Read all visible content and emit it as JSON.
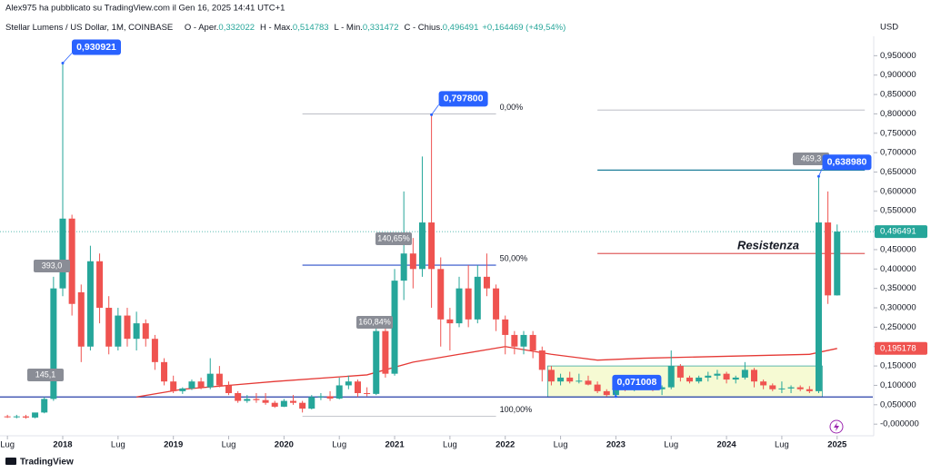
{
  "header": "Alex975 ha pubblicato su TradingView.com il Gen 16, 2025 14:41 UTC+1",
  "brand": "TradingView",
  "chart_data": {
    "type": "candlestick",
    "symbol": "Stellar Lumens / US Dollar, 1M, COINBASE",
    "ohlc": [
      {
        "label": "O - Aper.",
        "value": "0,332022"
      },
      {
        "label": "H - Max.",
        "value": "0,514783"
      },
      {
        "label": "L - Min.",
        "value": "0,331472"
      },
      {
        "label": "C - Chius.",
        "value": "0,496491"
      }
    ],
    "change": "+0,164469 (+49,54%)",
    "currency": "USD",
    "colors": {
      "up": "#26a69a",
      "down": "#ef5350"
    },
    "dates": [
      "2017-07",
      "2017-08",
      "2017-09",
      "2017-10",
      "2017-11",
      "2017-12",
      "2018-01",
      "2018-02",
      "2018-03",
      "2018-04",
      "2018-05",
      "2018-06",
      "2018-07",
      "2018-08",
      "2018-09",
      "2018-10",
      "2018-11",
      "2018-12",
      "2019-01",
      "2019-02",
      "2019-03",
      "2019-04",
      "2019-05",
      "2019-06",
      "2019-07",
      "2019-08",
      "2019-09",
      "2019-10",
      "2019-11",
      "2019-12",
      "2020-01",
      "2020-02",
      "2020-03",
      "2020-04",
      "2020-05",
      "2020-06",
      "2020-07",
      "2020-08",
      "2020-09",
      "2020-10",
      "2020-11",
      "2020-12",
      "2021-01",
      "2021-02",
      "2021-03",
      "2021-04",
      "2021-05",
      "2021-06",
      "2021-07",
      "2021-08",
      "2021-09",
      "2021-10",
      "2021-11",
      "2021-12",
      "2022-01",
      "2022-02",
      "2022-03",
      "2022-04",
      "2022-05",
      "2022-06",
      "2022-07",
      "2022-08",
      "2022-09",
      "2022-10",
      "2022-11",
      "2022-12",
      "2023-01",
      "2023-02",
      "2023-03",
      "2023-04",
      "2023-05",
      "2023-06",
      "2023-07",
      "2023-08",
      "2023-09",
      "2023-10",
      "2023-11",
      "2023-12",
      "2024-01",
      "2024-02",
      "2024-03",
      "2024-04",
      "2024-05",
      "2024-06",
      "2024-07",
      "2024-08",
      "2024-09",
      "2024-10",
      "2024-11",
      "2024-12",
      "2025-01"
    ],
    "candles": [
      [
        0.02,
        0.024,
        0.016,
        0.018
      ],
      [
        0.018,
        0.024,
        0.015,
        0.02
      ],
      [
        0.02,
        0.024,
        0.014,
        0.017
      ],
      [
        0.017,
        0.025,
        0.015,
        0.03
      ],
      [
        0.03,
        0.07,
        0.028,
        0.065
      ],
      [
        0.065,
        0.38,
        0.06,
        0.35
      ],
      [
        0.35,
        0.930921,
        0.33,
        0.53
      ],
      [
        0.53,
        0.54,
        0.28,
        0.31
      ],
      [
        0.34,
        0.36,
        0.16,
        0.2
      ],
      [
        0.2,
        0.46,
        0.19,
        0.42
      ],
      [
        0.42,
        0.44,
        0.26,
        0.3
      ],
      [
        0.3,
        0.33,
        0.18,
        0.2
      ],
      [
        0.2,
        0.3,
        0.19,
        0.28
      ],
      [
        0.28,
        0.3,
        0.2,
        0.22
      ],
      [
        0.22,
        0.29,
        0.19,
        0.26
      ],
      [
        0.26,
        0.27,
        0.2,
        0.22
      ],
      [
        0.22,
        0.23,
        0.14,
        0.16
      ],
      [
        0.16,
        0.17,
        0.1,
        0.11
      ],
      [
        0.11,
        0.125,
        0.08,
        0.085
      ],
      [
        0.085,
        0.095,
        0.078,
        0.092
      ],
      [
        0.092,
        0.115,
        0.088,
        0.11
      ],
      [
        0.11,
        0.12,
        0.09,
        0.095
      ],
      [
        0.095,
        0.17,
        0.09,
        0.13
      ],
      [
        0.13,
        0.15,
        0.095,
        0.1
      ],
      [
        0.1,
        0.11,
        0.075,
        0.08
      ],
      [
        0.08,
        0.085,
        0.055,
        0.06
      ],
      [
        0.06,
        0.075,
        0.055,
        0.065
      ],
      [
        0.065,
        0.08,
        0.055,
        0.062
      ],
      [
        0.062,
        0.08,
        0.05,
        0.055
      ],
      [
        0.055,
        0.06,
        0.042,
        0.045
      ],
      [
        0.045,
        0.065,
        0.044,
        0.06
      ],
      [
        0.06,
        0.075,
        0.05,
        0.055
      ],
      [
        0.055,
        0.06,
        0.03,
        0.04
      ],
      [
        0.04,
        0.075,
        0.038,
        0.07
      ],
      [
        0.07,
        0.08,
        0.062,
        0.072
      ],
      [
        0.072,
        0.085,
        0.06,
        0.066
      ],
      [
        0.066,
        0.12,
        0.064,
        0.1
      ],
      [
        0.1,
        0.125,
        0.09,
        0.11
      ],
      [
        0.11,
        0.115,
        0.07,
        0.08
      ],
      [
        0.08,
        0.095,
        0.072,
        0.078
      ],
      [
        0.078,
        0.26,
        0.075,
        0.24
      ],
      [
        0.24,
        0.25,
        0.12,
        0.13
      ],
      [
        0.13,
        0.4,
        0.125,
        0.37
      ],
      [
        0.37,
        0.6,
        0.32,
        0.44
      ],
      [
        0.44,
        0.48,
        0.35,
        0.4
      ],
      [
        0.4,
        0.69,
        0.38,
        0.52
      ],
      [
        0.52,
        0.7978,
        0.3,
        0.4
      ],
      [
        0.4,
        0.43,
        0.2,
        0.27
      ],
      [
        0.27,
        0.3,
        0.19,
        0.26
      ],
      [
        0.26,
        0.38,
        0.25,
        0.35
      ],
      [
        0.35,
        0.41,
        0.25,
        0.27
      ],
      [
        0.27,
        0.41,
        0.26,
        0.38
      ],
      [
        0.38,
        0.44,
        0.33,
        0.35
      ],
      [
        0.35,
        0.36,
        0.24,
        0.27
      ],
      [
        0.27,
        0.28,
        0.18,
        0.23
      ],
      [
        0.23,
        0.24,
        0.18,
        0.2
      ],
      [
        0.2,
        0.24,
        0.18,
        0.23
      ],
      [
        0.23,
        0.24,
        0.17,
        0.19
      ],
      [
        0.19,
        0.2,
        0.11,
        0.14
      ],
      [
        0.14,
        0.15,
        0.1,
        0.11
      ],
      [
        0.11,
        0.13,
        0.1,
        0.12
      ],
      [
        0.12,
        0.135,
        0.105,
        0.11
      ],
      [
        0.11,
        0.13,
        0.105,
        0.112
      ],
      [
        0.112,
        0.125,
        0.1,
        0.102
      ],
      [
        0.102,
        0.11,
        0.08,
        0.085
      ],
      [
        0.085,
        0.09,
        0.071,
        0.075
      ],
      [
        0.075,
        0.1,
        0.071008,
        0.095
      ],
      [
        0.095,
        0.105,
        0.085,
        0.09
      ],
      [
        0.09,
        0.11,
        0.085,
        0.1
      ],
      [
        0.1,
        0.115,
        0.09,
        0.095
      ],
      [
        0.095,
        0.1,
        0.085,
        0.09
      ],
      [
        0.09,
        0.1,
        0.075,
        0.095
      ],
      [
        0.095,
        0.19,
        0.09,
        0.15
      ],
      [
        0.15,
        0.155,
        0.11,
        0.12
      ],
      [
        0.12,
        0.125,
        0.105,
        0.11
      ],
      [
        0.11,
        0.125,
        0.105,
        0.12
      ],
      [
        0.12,
        0.135,
        0.11,
        0.125
      ],
      [
        0.125,
        0.14,
        0.115,
        0.13
      ],
      [
        0.13,
        0.135,
        0.105,
        0.115
      ],
      [
        0.115,
        0.125,
        0.105,
        0.12
      ],
      [
        0.12,
        0.16,
        0.115,
        0.14
      ],
      [
        0.14,
        0.145,
        0.095,
        0.11
      ],
      [
        0.11,
        0.115,
        0.09,
        0.1
      ],
      [
        0.1,
        0.105,
        0.085,
        0.09
      ],
      [
        0.09,
        0.11,
        0.08,
        0.092
      ],
      [
        0.092,
        0.1,
        0.08,
        0.095
      ],
      [
        0.095,
        0.1,
        0.085,
        0.09
      ],
      [
        0.09,
        0.098,
        0.08,
        0.085
      ],
      [
        0.085,
        0.63898,
        0.08,
        0.52
      ],
      [
        0.52,
        0.6,
        0.31,
        0.332
      ],
      [
        0.332022,
        0.514783,
        0.331472,
        0.496491
      ]
    ],
    "ma": {
      "color": "#e53935",
      "x": [
        "2018-09",
        "2019-02",
        "2019-12",
        "2020-10",
        "2021-03",
        "2021-08",
        "2022-01",
        "2022-06",
        "2022-11",
        "2023-04",
        "2024-01",
        "2024-10",
        "2025-01"
      ],
      "values": [
        0.07,
        0.09,
        0.11,
        0.127,
        0.16,
        0.18,
        0.2,
        0.18,
        0.165,
        0.17,
        0.175,
        0.18,
        0.195178
      ],
      "value_label": "0,195178"
    },
    "last_price": {
      "value": 0.496491,
      "label": "0,496491"
    },
    "ylim": [
      -0.03,
      1.0
    ],
    "yticks": [
      {
        "value": 0,
        "label": "-0,000000"
      },
      {
        "value": 0.05,
        "label": "0,050000"
      },
      {
        "value": 0.1,
        "label": "0,100000"
      },
      {
        "value": 0.15,
        "label": "0,150000"
      },
      {
        "value": 0.2,
        "label": "0,200000"
      },
      {
        "value": 0.25,
        "label": "0,250000"
      },
      {
        "value": 0.3,
        "label": "0,300000"
      },
      {
        "value": 0.35,
        "label": "0,350000"
      },
      {
        "value": 0.4,
        "label": "0,400000"
      },
      {
        "value": 0.45,
        "label": "0,450000"
      },
      {
        "value": 0.5,
        "label": "0,500000"
      },
      {
        "value": 0.55,
        "label": "0,550000"
      },
      {
        "value": 0.6,
        "label": "0,600000"
      },
      {
        "value": 0.65,
        "label": "0,650000"
      },
      {
        "value": 0.7,
        "label": "0,700000"
      },
      {
        "value": 0.75,
        "label": "0,750000"
      },
      {
        "value": 0.8,
        "label": "0,800000"
      },
      {
        "value": 0.85,
        "label": "0,850000"
      },
      {
        "value": 0.9,
        "label": "0,900000"
      },
      {
        "value": 0.95,
        "label": "0,950000"
      }
    ],
    "xticks": [
      {
        "value": "2017-07",
        "label": "Lug"
      },
      {
        "value": "2018-01",
        "label": "2018"
      },
      {
        "value": "2018-07",
        "label": "Lug"
      },
      {
        "value": "2019-01",
        "label": "2019"
      },
      {
        "value": "2019-07",
        "label": "Lug"
      },
      {
        "value": "2020-01",
        "label": "2020"
      },
      {
        "value": "2020-07",
        "label": "Lug"
      },
      {
        "value": "2021-01",
        "label": "2021"
      },
      {
        "value": "2021-07",
        "label": "Lug"
      },
      {
        "value": "2022-01",
        "label": "2022"
      },
      {
        "value": "2022-07",
        "label": "Lug"
      },
      {
        "value": "2023-01",
        "label": "2023"
      },
      {
        "value": "2023-07",
        "label": "Lug"
      },
      {
        "value": "2024-01",
        "label": "2024"
      },
      {
        "value": "2024-07",
        "label": "Lug"
      },
      {
        "value": "2025-01",
        "label": "2025"
      }
    ],
    "levels": [
      {
        "value": 0.07,
        "color": "#283fa8",
        "start": "2017-06",
        "end": "2025-05"
      },
      {
        "value": 0.8,
        "color": "#b2b5be",
        "start": "2020-03",
        "end": "2021-12",
        "label": "0,00%"
      },
      {
        "value": 0.41,
        "color": "#2c4fc9",
        "start": "2020-03",
        "end": "2021-12",
        "label": "50,00%"
      },
      {
        "value": 0.02,
        "color": "#b2b5be",
        "start": "2020-03",
        "end": "2021-12",
        "label": "100,00%"
      },
      {
        "value": 0.81,
        "color": "#b2b5be",
        "start": "2022-11",
        "end": "2025-04"
      },
      {
        "value": 0.655,
        "color": "#1e7f9a",
        "start": "2022-11",
        "end": "2025-04"
      },
      {
        "value": 0.44,
        "color": "#e06060",
        "start": "2022-11",
        "end": "2025-04",
        "label": "Resistenza"
      }
    ],
    "zone": {
      "start": "2022-06",
      "end": "2024-11",
      "low": 0.07,
      "high": 0.15
    },
    "annotations": [
      {
        "date": "2018-01",
        "value": 0.930921,
        "label": "0,930921"
      },
      {
        "date": "2021-05",
        "value": 0.7978,
        "label": "0,797800"
      },
      {
        "date": "2024-11",
        "value": 0.63898,
        "label": "0,638980"
      },
      {
        "date": "2023-01",
        "value": 0.071008,
        "label": "0,071008"
      }
    ],
    "percent_labels": [
      "145,1",
      "393,0",
      "140,65%",
      "160,84%",
      "469,3"
    ]
  }
}
